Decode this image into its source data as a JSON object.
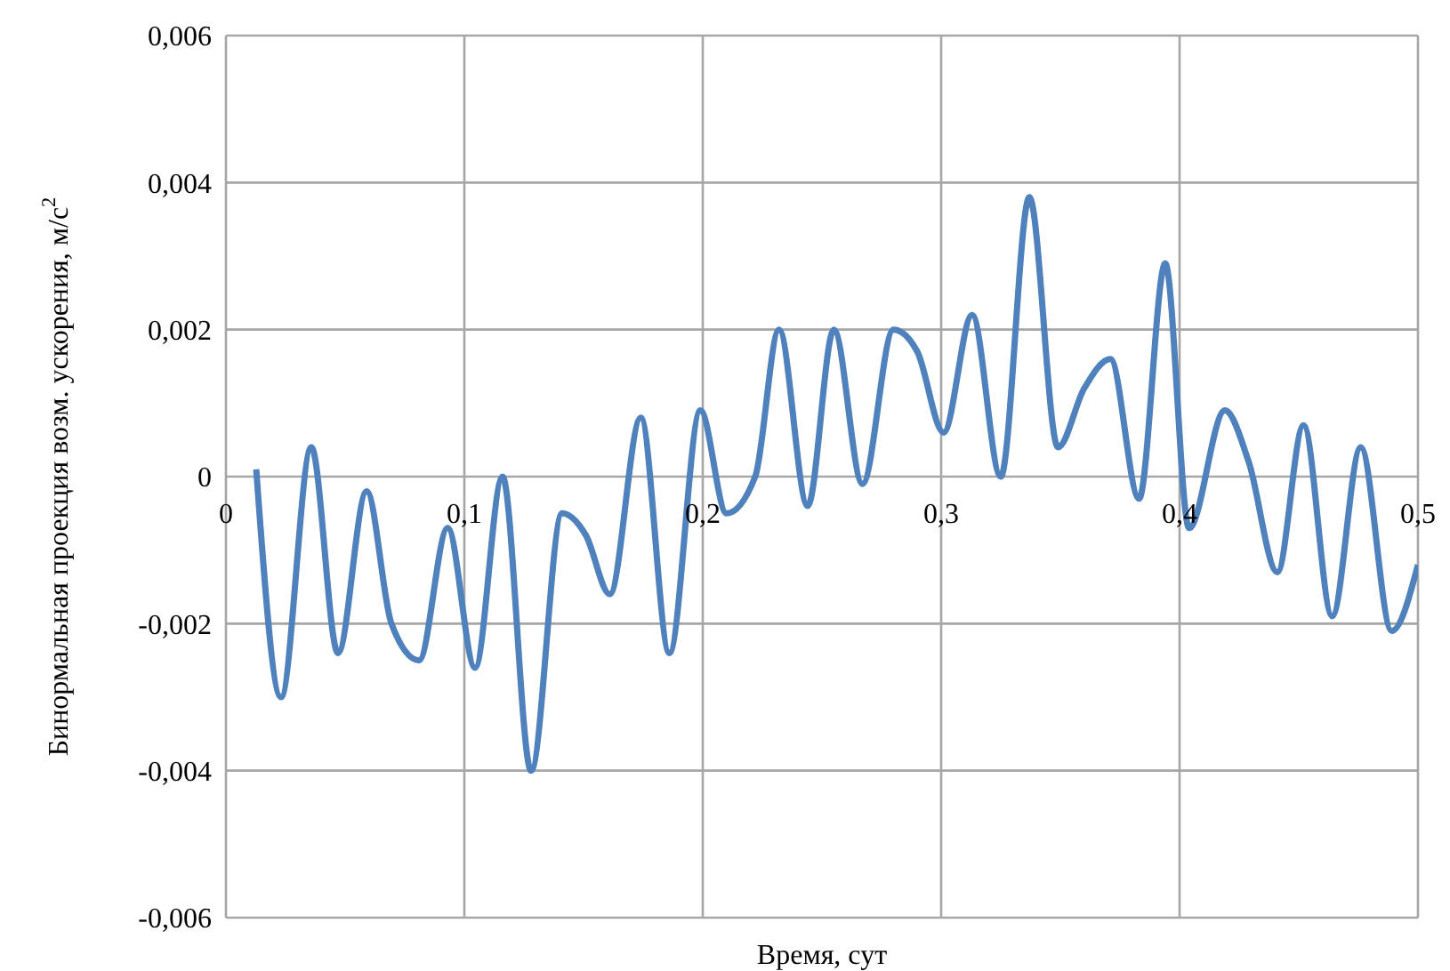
{
  "chart_data": {
    "type": "line",
    "xlabel": "Время, сут",
    "ylabel": "Бинормальная проекция возм. ускорения, м/с$^{2}$",
    "x": [
      0.0127,
      0.0231,
      0.0358,
      0.047,
      0.059,
      0.0694,
      0.081,
      0.093,
      0.1045,
      0.116,
      0.128,
      0.141,
      0.151,
      0.161,
      0.174,
      0.186,
      0.199,
      0.21,
      0.222,
      0.232,
      0.244,
      0.255,
      0.267,
      0.28,
      0.29,
      0.301,
      0.313,
      0.325,
      0.337,
      0.349,
      0.36,
      0.371,
      0.383,
      0.394,
      0.404,
      0.419,
      0.429,
      0.441,
      0.452,
      0.464,
      0.476,
      0.489,
      0.5
    ],
    "series": [
      {
        "color": "#4f81bd",
        "values": [
          0.0001,
          -0.003,
          0.0004,
          -0.0024,
          -0.0002,
          -0.002,
          -0.0025,
          -0.0007,
          -0.0026,
          0.0,
          -0.004,
          -0.0005,
          -0.0008,
          -0.0016,
          0.0008,
          -0.0024,
          0.0009,
          -0.0005,
          0.0,
          0.002,
          -0.0004,
          0.002,
          -0.0001,
          0.002,
          0.0017,
          0.0006,
          0.0022,
          0.0,
          0.0038,
          0.0004,
          0.0012,
          0.0016,
          -0.0003,
          0.0029,
          -0.0007,
          0.0009,
          0.0002,
          -0.0013,
          0.0007,
          -0.0019,
          0.0004,
          -0.0021,
          -0.0012
        ]
      }
    ],
    "xlim": [
      0,
      0.5
    ],
    "xticks": [
      0,
      {
        "value": 0.1,
        "label": "0,1"
      },
      {
        "value": 0.2,
        "label": "0,2"
      },
      {
        "value": 0.3,
        "label": "0,3"
      },
      {
        "value": 0.4,
        "label": "0,4"
      },
      {
        "value": 0.5,
        "label": "0,5"
      }
    ],
    "ylim": [
      -0.006,
      0.006
    ],
    "yticks": [
      {
        "value": -0.006,
        "label": "-0,006"
      },
      {
        "value": -0.004,
        "label": "-0,004"
      },
      {
        "value": -0.002,
        "label": "-0,002"
      },
      0,
      {
        "value": 0.002,
        "label": "0,002"
      },
      {
        "value": 0.004,
        "label": "0,004"
      },
      {
        "value": 0.006,
        "label": "0,006"
      }
    ],
    "grid": true,
    "legend": false,
    "marker": "none",
    "line_style": "solid"
  }
}
